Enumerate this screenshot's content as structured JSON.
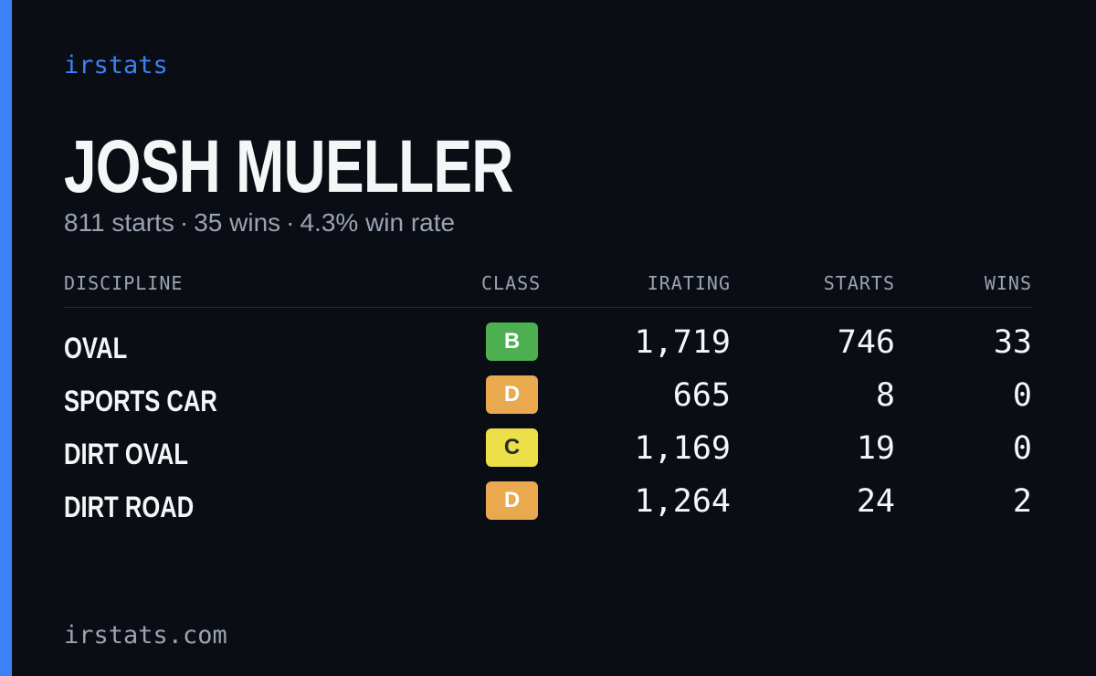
{
  "brand": "irstats",
  "driver": {
    "name": "JOSH MUELLER",
    "starts_text": "811 starts",
    "wins_text": "35 wins",
    "win_rate_text": "4.3% win rate",
    "separator": "·"
  },
  "table": {
    "headers": {
      "discipline": "DISCIPLINE",
      "class": "CLASS",
      "irating": "IRATING",
      "starts": "STARTS",
      "wins": "WINS"
    },
    "rows": [
      {
        "discipline": "OVAL",
        "class": "B",
        "class_color": "#4caf50",
        "class_text_color": "#ffffff",
        "irating": "1,719",
        "starts": "746",
        "wins": "33"
      },
      {
        "discipline": "SPORTS CAR",
        "class": "D",
        "class_color": "#e8a94f",
        "class_text_color": "#ffffff",
        "irating": "665",
        "starts": "8",
        "wins": "0"
      },
      {
        "discipline": "DIRT OVAL",
        "class": "C",
        "class_color": "#ece04a",
        "class_text_color": "#2a2a2a",
        "irating": "1,169",
        "starts": "19",
        "wins": "0"
      },
      {
        "discipline": "DIRT ROAD",
        "class": "D",
        "class_color": "#e8a94f",
        "class_text_color": "#ffffff",
        "irating": "1,264",
        "starts": "24",
        "wins": "2"
      }
    ]
  },
  "footer": {
    "url": "irstats.com"
  },
  "colors": {
    "accent": "#3b82f6",
    "background": "#0a0d14",
    "muted": "#9aa3b2"
  }
}
